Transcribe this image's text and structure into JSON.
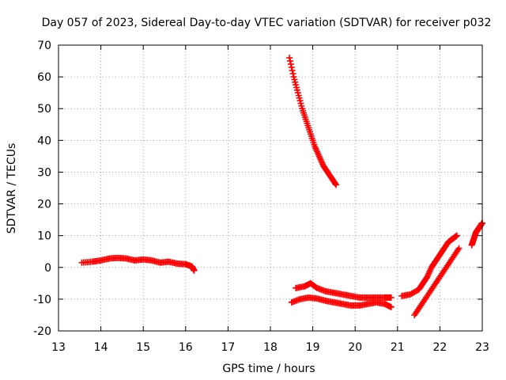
{
  "chart_data": {
    "type": "scatter",
    "title": "Day 057 of 2023, Sidereal Day-to-day VTEC variation (SDTVAR) for receiver p032",
    "xlabel": "GPS time / hours",
    "ylabel": "SDTVAR / TECUs",
    "xlim": [
      13,
      23
    ],
    "ylim": [
      -20,
      70
    ],
    "xticks": [
      "13",
      "14",
      "15",
      "16",
      "17",
      "18",
      "19",
      "20",
      "21",
      "22",
      "23"
    ],
    "yticks": [
      "-20",
      "-10",
      "0",
      "10",
      "20",
      "30",
      "40",
      "50",
      "60",
      "70"
    ],
    "grid": true,
    "marker": "plus",
    "series_color": "#ff0000",
    "series": [
      {
        "name": "segment-1",
        "points": [
          [
            13.55,
            1.5
          ],
          [
            13.8,
            1.8
          ],
          [
            14.0,
            2.2
          ],
          [
            14.2,
            2.8
          ],
          [
            14.4,
            3.0
          ],
          [
            14.6,
            2.8
          ],
          [
            14.8,
            2.2
          ],
          [
            15.0,
            2.5
          ],
          [
            15.2,
            2.2
          ],
          [
            15.4,
            1.5
          ],
          [
            15.6,
            1.8
          ],
          [
            15.8,
            1.2
          ],
          [
            16.0,
            1.0
          ],
          [
            16.15,
            0.3
          ],
          [
            16.2,
            -1.0
          ]
        ]
      },
      {
        "name": "segment-2",
        "points": [
          [
            18.45,
            66
          ],
          [
            18.55,
            60
          ],
          [
            18.65,
            55
          ],
          [
            18.75,
            50
          ],
          [
            18.85,
            46
          ],
          [
            18.95,
            42
          ],
          [
            19.05,
            38
          ],
          [
            19.15,
            35
          ],
          [
            19.25,
            32
          ],
          [
            19.35,
            30
          ],
          [
            19.45,
            28
          ],
          [
            19.55,
            26
          ]
        ]
      },
      {
        "name": "segment-3",
        "points": [
          [
            18.5,
            -11
          ],
          [
            18.7,
            -10
          ],
          [
            18.9,
            -9.5
          ],
          [
            19.1,
            -9.8
          ],
          [
            19.3,
            -10.5
          ],
          [
            19.5,
            -11
          ],
          [
            19.7,
            -11.5
          ],
          [
            19.9,
            -12
          ],
          [
            20.1,
            -12
          ],
          [
            20.3,
            -11.5
          ],
          [
            20.5,
            -11
          ],
          [
            20.7,
            -11.5
          ],
          [
            20.85,
            -12.5
          ]
        ]
      },
      {
        "name": "segment-4",
        "points": [
          [
            18.6,
            -6.5
          ],
          [
            18.8,
            -6
          ],
          [
            18.95,
            -5
          ],
          [
            19.1,
            -6.5
          ],
          [
            19.3,
            -7.5
          ],
          [
            19.5,
            -8
          ],
          [
            19.7,
            -8.5
          ],
          [
            19.9,
            -9
          ],
          [
            20.1,
            -9.5
          ],
          [
            20.3,
            -9.5
          ],
          [
            20.5,
            -9.5
          ],
          [
            20.7,
            -9.5
          ],
          [
            20.85,
            -9.5
          ]
        ]
      },
      {
        "name": "segment-5",
        "points": [
          [
            21.1,
            -9
          ],
          [
            21.3,
            -8.5
          ],
          [
            21.5,
            -7
          ],
          [
            21.6,
            -5
          ],
          [
            21.7,
            -3
          ],
          [
            21.8,
            0
          ],
          [
            21.9,
            2
          ],
          [
            22.0,
            4
          ],
          [
            22.1,
            6
          ],
          [
            22.2,
            8
          ],
          [
            22.3,
            9
          ],
          [
            22.4,
            10
          ]
        ]
      },
      {
        "name": "segment-6",
        "points": [
          [
            21.4,
            -15
          ],
          [
            21.55,
            -12
          ],
          [
            21.7,
            -9
          ],
          [
            21.85,
            -6
          ],
          [
            22.0,
            -3
          ],
          [
            22.15,
            0
          ],
          [
            22.3,
            3
          ],
          [
            22.45,
            6
          ]
        ]
      },
      {
        "name": "segment-7",
        "points": [
          [
            22.75,
            7
          ],
          [
            22.8,
            9
          ],
          [
            22.85,
            11
          ],
          [
            22.9,
            12
          ],
          [
            22.95,
            13
          ],
          [
            23.0,
            14
          ]
        ]
      }
    ]
  }
}
